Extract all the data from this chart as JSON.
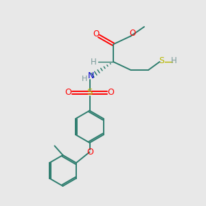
{
  "background_color": "#e8e8e8",
  "bond_color": "#2d7d6e",
  "o_color": "#ff0000",
  "n_color": "#0000cc",
  "s_color": "#b8b800",
  "h_color": "#7a9a9a",
  "figsize": [
    3.0,
    3.0
  ],
  "dpi": 100,
  "xlim": [
    0,
    10
  ],
  "ylim": [
    0,
    10
  ]
}
